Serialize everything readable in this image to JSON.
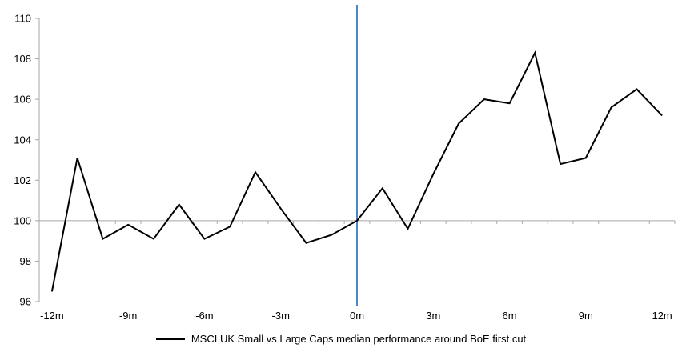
{
  "chart_data": {
    "type": "line",
    "title": "",
    "xlabel": "",
    "ylabel": "",
    "grid": "none",
    "legend_position": "bottom-center",
    "axis_color": "#a6a6a6",
    "text_color": "#000000",
    "ylim": [
      96,
      110
    ],
    "yticks": [
      96,
      98,
      100,
      102,
      104,
      106,
      108,
      110
    ],
    "axis_cross_value": 100,
    "x_months": [
      -12,
      -11,
      -10,
      -9,
      -8,
      -7,
      -6,
      -5,
      -4,
      -3,
      -2,
      -1,
      0,
      1,
      2,
      3,
      4,
      5,
      6,
      7,
      8,
      9,
      10,
      11,
      12
    ],
    "x_tick_labels": [
      "-12m",
      "-9m",
      "-6m",
      "-3m",
      "0m",
      "3m",
      "6m",
      "9m",
      "12m"
    ],
    "x_tick_every": 3,
    "event_line": {
      "x_month": 0,
      "color": "#4f87c6"
    },
    "series": [
      {
        "name": "MSCI UK Small vs Large Caps median performance around BoE first cut",
        "color": "#000000",
        "values": [
          96.5,
          103.1,
          99.1,
          99.8,
          99.1,
          100.8,
          99.1,
          99.7,
          102.4,
          100.6,
          98.9,
          99.3,
          100.0,
          101.6,
          99.6,
          102.3,
          104.8,
          106.0,
          105.8,
          108.3,
          102.8,
          103.1,
          105.6,
          106.5,
          105.2
        ]
      }
    ]
  }
}
